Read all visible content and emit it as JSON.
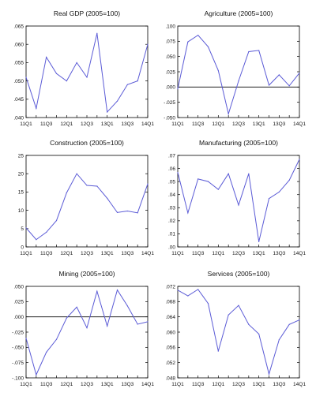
{
  "chart_data": [
    {
      "type": "line",
      "title": "Real GDP (2005=100)",
      "categories": [
        "11Q1",
        "11Q2",
        "11Q3",
        "11Q4",
        "12Q1",
        "12Q2",
        "12Q3",
        "12Q4",
        "13Q1",
        "13Q2",
        "13Q3",
        "13Q4",
        "14Q1"
      ],
      "values": [
        0.051,
        0.0425,
        0.0565,
        0.052,
        0.05,
        0.055,
        0.051,
        0.063,
        0.0415,
        0.0445,
        0.049,
        0.05,
        0.06
      ],
      "x_tick_labels": [
        "11Q1",
        "11Q3",
        "12Q1",
        "12Q3",
        "13Q1",
        "13Q3",
        "14Q1"
      ],
      "y_tick_labels": [
        ".040",
        ".045",
        ".050",
        ".055",
        ".060",
        ".065"
      ],
      "ylim": [
        0.04,
        0.065
      ],
      "zero_line": false,
      "line_color": "#5b5bd6"
    },
    {
      "type": "line",
      "title": "Agriculture (2005=100)",
      "categories": [
        "11Q1",
        "11Q2",
        "11Q3",
        "11Q4",
        "12Q1",
        "12Q2",
        "12Q3",
        "12Q4",
        "13Q1",
        "13Q2",
        "13Q3",
        "13Q4",
        "14Q1"
      ],
      "values": [
        -0.003,
        0.074,
        0.085,
        0.066,
        0.027,
        -0.044,
        0.01,
        0.058,
        0.06,
        0.003,
        0.02,
        0.002,
        0.023
      ],
      "x_tick_labels": [
        "11Q1",
        "11Q3",
        "12Q1",
        "12Q3",
        "13Q1",
        "13Q3",
        "14Q1"
      ],
      "y_tick_labels": [
        "-.050",
        "-.025",
        ".000",
        ".025",
        ".050",
        ".075",
        ".100"
      ],
      "ylim": [
        -0.05,
        0.1
      ],
      "zero_line": true,
      "line_color": "#5b5bd6"
    },
    {
      "type": "line",
      "title": "Construction (2005=100)",
      "categories": [
        "11Q1",
        "11Q2",
        "11Q3",
        "11Q4",
        "12Q1",
        "12Q2",
        "12Q3",
        "12Q4",
        "13Q1",
        "13Q2",
        "13Q3",
        "13Q4",
        "14Q1"
      ],
      "values": [
        5.2,
        2.0,
        4.0,
        7.2,
        14.8,
        20.0,
        16.8,
        16.6,
        13.3,
        9.4,
        9.8,
        9.3,
        17.2
      ],
      "x_tick_labels": [
        "11Q1",
        "11Q3",
        "12Q1",
        "12Q3",
        "13Q1",
        "13Q3",
        "14Q1"
      ],
      "y_tick_labels": [
        "0",
        "5",
        "10",
        "15",
        "20",
        "25"
      ],
      "ylim": [
        0,
        25
      ],
      "zero_line": false,
      "line_color": "#5b5bd6"
    },
    {
      "type": "line",
      "title": "Manufacturing (2005=100)",
      "categories": [
        "11Q1",
        "11Q2",
        "11Q3",
        "11Q4",
        "12Q1",
        "12Q2",
        "12Q3",
        "12Q4",
        "13Q1",
        "13Q2",
        "13Q3",
        "13Q4",
        "14Q1"
      ],
      "values": [
        0.057,
        0.026,
        0.052,
        0.05,
        0.044,
        0.056,
        0.032,
        0.056,
        0.004,
        0.037,
        0.042,
        0.051,
        0.067
      ],
      "x_tick_labels": [
        "11Q1",
        "11Q3",
        "12Q1",
        "12Q3",
        "13Q1",
        "13Q3",
        "14Q1"
      ],
      "y_tick_labels": [
        ".00",
        ".01",
        ".02",
        ".03",
        ".04",
        ".05",
        ".06",
        ".07"
      ],
      "ylim": [
        0.0,
        0.07
      ],
      "zero_line": false,
      "line_color": "#5b5bd6"
    },
    {
      "type": "line",
      "title": "Mining (2005=100)",
      "categories": [
        "11Q1",
        "11Q2",
        "11Q3",
        "11Q4",
        "12Q1",
        "12Q2",
        "12Q3",
        "12Q4",
        "13Q1",
        "13Q2",
        "13Q3",
        "13Q4",
        "14Q1"
      ],
      "values": [
        -0.035,
        -0.095,
        -0.058,
        -0.037,
        -0.002,
        0.016,
        -0.018,
        0.042,
        -0.015,
        0.044,
        0.018,
        -0.012,
        -0.008
      ],
      "x_tick_labels": [
        "11Q1",
        "11Q3",
        "12Q1",
        "12Q3",
        "13Q1",
        "13Q3",
        "14Q1"
      ],
      "y_tick_labels": [
        "-.100",
        "-.075",
        "-.050",
        "-.025",
        ".000",
        ".025",
        ".050"
      ],
      "ylim": [
        -0.1,
        0.05
      ],
      "zero_line": true,
      "line_color": "#5b5bd6"
    },
    {
      "type": "line",
      "title": "Services (2005=100)",
      "categories": [
        "11Q1",
        "11Q2",
        "11Q3",
        "11Q4",
        "12Q1",
        "12Q2",
        "12Q3",
        "12Q4",
        "13Q1",
        "13Q2",
        "13Q3",
        "13Q4",
        "14Q1"
      ],
      "values": [
        0.071,
        0.0695,
        0.0712,
        0.0675,
        0.055,
        0.0645,
        0.067,
        0.062,
        0.0595,
        0.049,
        0.058,
        0.062,
        0.0632
      ],
      "x_tick_labels": [
        "11Q1",
        "11Q3",
        "12Q1",
        "12Q3",
        "13Q1",
        "13Q3",
        "14Q1"
      ],
      "y_tick_labels": [
        ".048",
        ".052",
        ".056",
        ".060",
        ".064",
        ".068",
        ".072"
      ],
      "ylim": [
        0.048,
        0.072
      ],
      "zero_line": false,
      "line_color": "#5b5bd6"
    }
  ]
}
